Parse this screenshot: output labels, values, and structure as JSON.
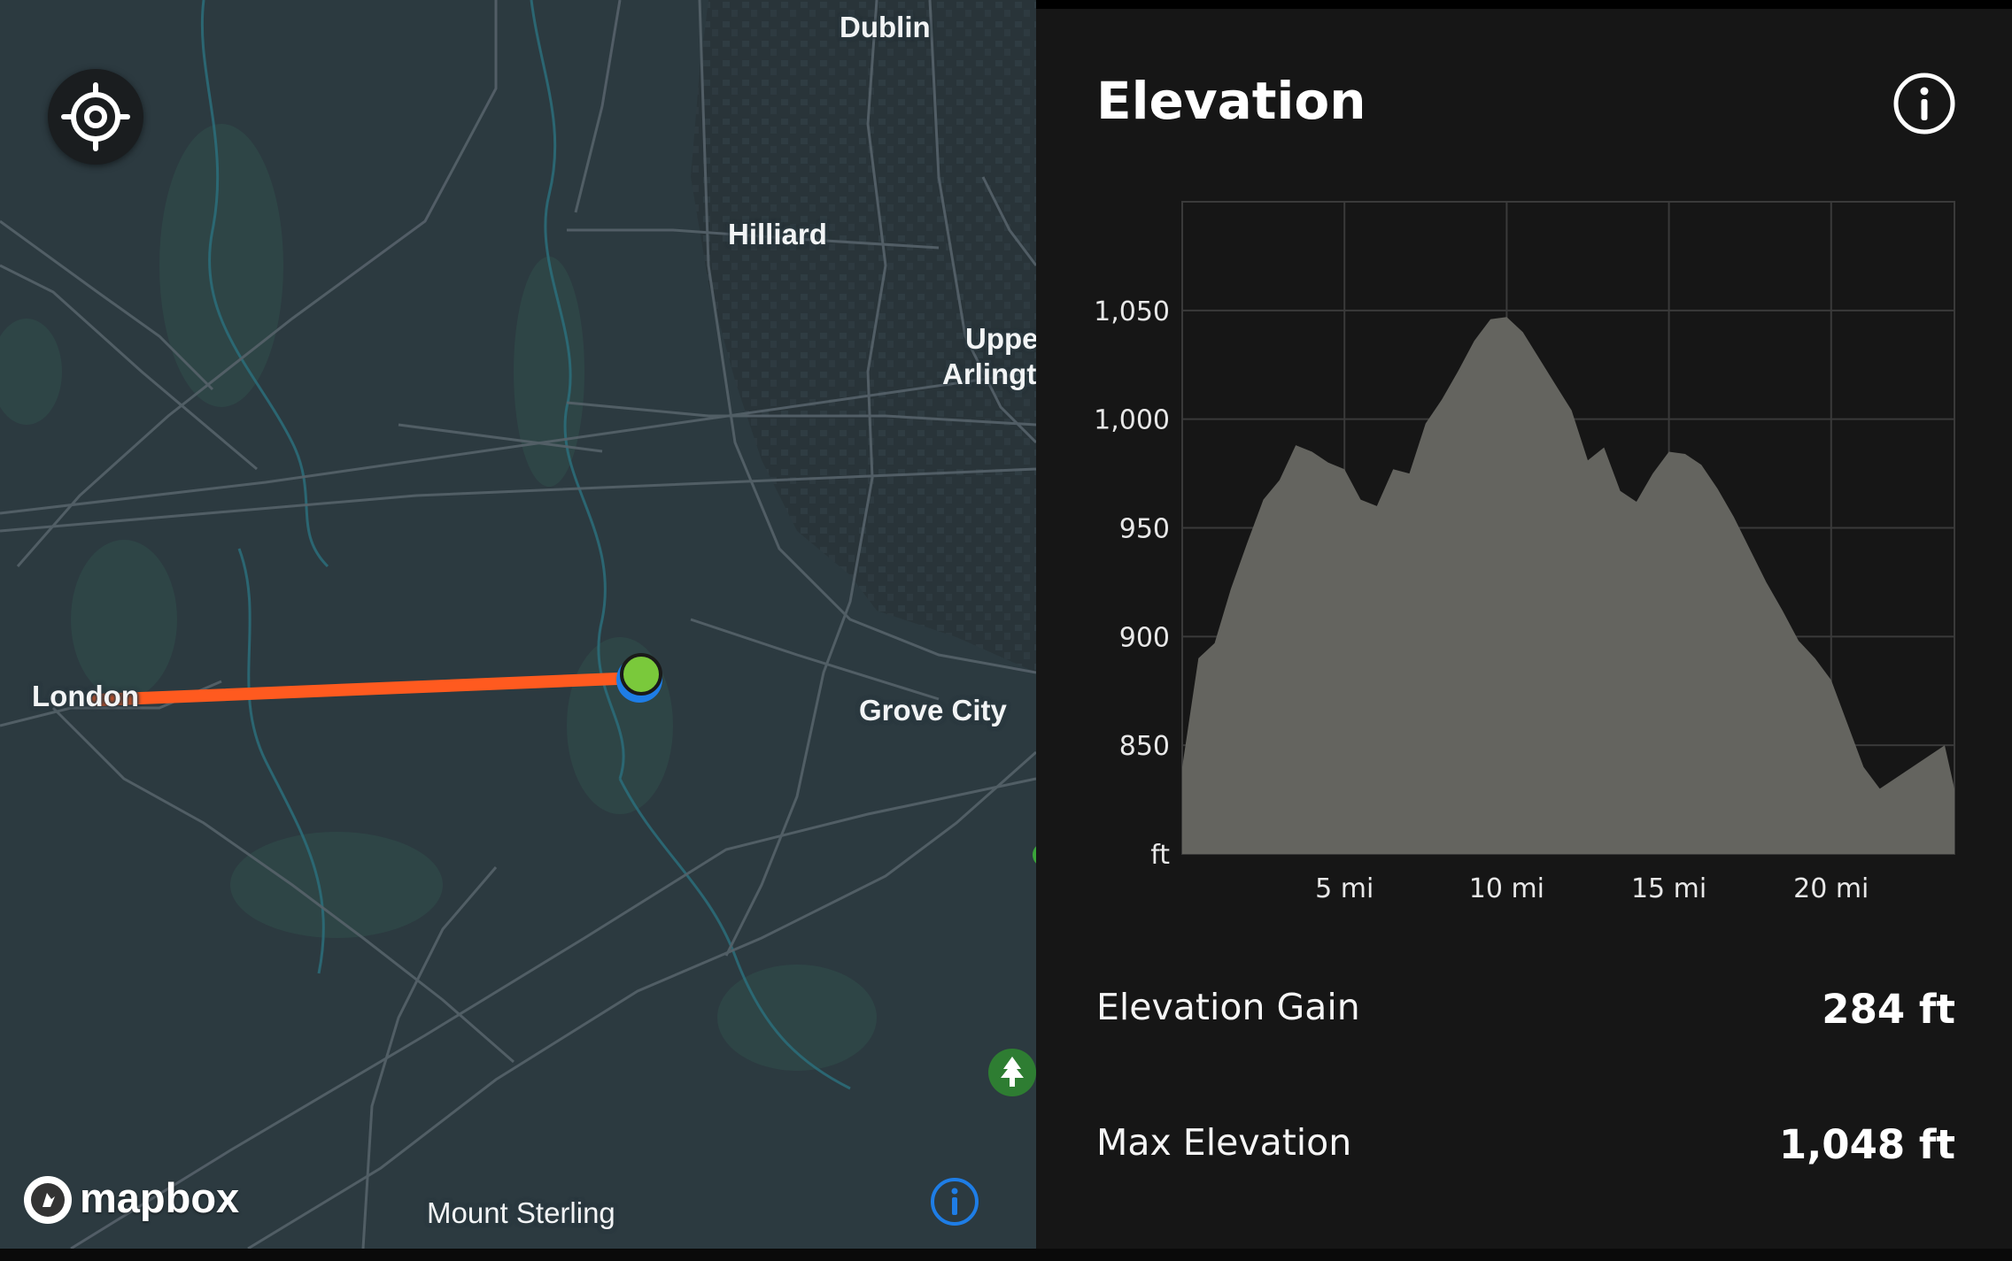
{
  "map": {
    "cities": [
      {
        "name": "Dublin"
      },
      {
        "name": "Hilliard"
      },
      {
        "name": "Upper"
      },
      {
        "name": "Arlington"
      },
      {
        "name": "London"
      },
      {
        "name": "Grove City"
      },
      {
        "name": "Mount Sterling"
      }
    ],
    "attribution": "mapbox",
    "colors": {
      "route": "#ff5a1f",
      "marker": "#7ac93b",
      "marker_ring": "#1e7de6",
      "info": "#1e7de6",
      "park": "#2e7d32"
    }
  },
  "panel": {
    "title": "Elevation",
    "stats": [
      {
        "label": "Elevation Gain",
        "value": "284 ft"
      },
      {
        "label": "Max Elevation",
        "value": "1,048 ft"
      }
    ]
  },
  "chart_data": {
    "type": "area",
    "title": "Elevation",
    "xlabel": "mi",
    "ylabel": "ft",
    "xlim": [
      0,
      23.8
    ],
    "ylim": [
      800,
      1100
    ],
    "x_ticks": [
      "5 mi",
      "10 mi",
      "15 mi",
      "20 mi"
    ],
    "x_tick_values": [
      5,
      10,
      15,
      20
    ],
    "y_ticks": [
      "1,050",
      "1,000",
      "950",
      "900",
      "850",
      "ft"
    ],
    "y_tick_values": [
      1050,
      1000,
      950,
      900,
      850,
      800
    ],
    "series": [
      {
        "name": "Elevation",
        "x": [
          0,
          0.5,
          1.0,
          1.5,
          2.0,
          2.5,
          3.0,
          3.5,
          4.0,
          4.5,
          5.0,
          5.5,
          6.0,
          6.5,
          7.0,
          7.5,
          8.0,
          8.5,
          9.0,
          9.5,
          10.0,
          10.5,
          11.0,
          11.5,
          12.0,
          12.5,
          13.0,
          13.5,
          14.0,
          14.5,
          15.0,
          15.5,
          16.0,
          16.5,
          17.0,
          17.5,
          18.0,
          18.5,
          19.0,
          19.5,
          20.0,
          20.5,
          21.0,
          21.5,
          22.0,
          22.5,
          23.0,
          23.5,
          23.8
        ],
        "values": [
          840,
          890,
          897,
          922,
          943,
          963,
          972,
          988,
          985,
          980,
          977,
          963,
          960,
          977,
          975,
          998,
          1009,
          1022,
          1036,
          1046,
          1047,
          1040,
          1028,
          1016,
          1004,
          981,
          987,
          967,
          962,
          975,
          985,
          984,
          979,
          968,
          955,
          940,
          925,
          912,
          898,
          890,
          880,
          860,
          840,
          830,
          835,
          840,
          845,
          850,
          830
        ]
      }
    ]
  }
}
